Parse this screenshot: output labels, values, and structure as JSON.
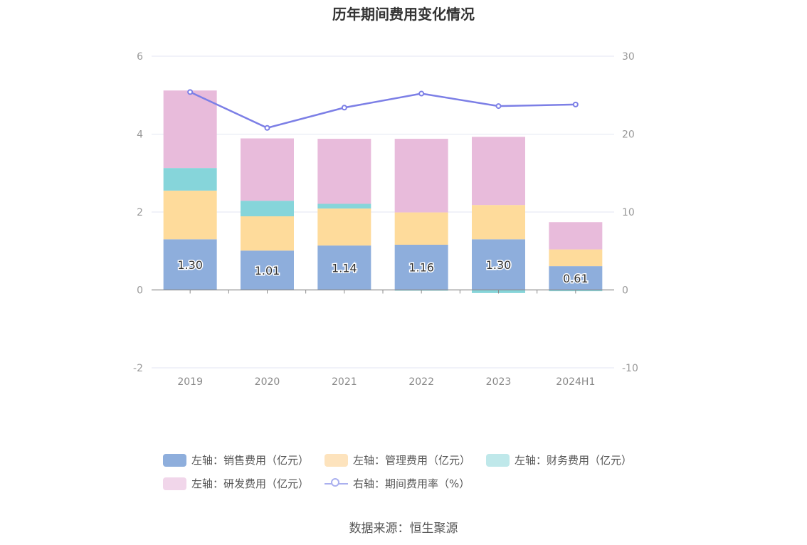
{
  "title": "历年期间费用变化情况",
  "source": "数据来源：恒生聚源",
  "colors": {
    "sales": "#8eaedc",
    "admin": "#fedb9b",
    "finance": "#86d5da",
    "rnd": "#e8bbdb",
    "rate": "#7c7fe6"
  },
  "legend": [
    {
      "label": "左轴：销售费用（亿元）",
      "color": "#8eaedc"
    },
    {
      "label": "左轴：管理费用（亿元）",
      "color": "#fde3bd"
    },
    {
      "label": "左轴：财务费用（亿元）",
      "color": "#bfe8ea"
    },
    {
      "label": "左轴：研发费用（亿元）",
      "color": "#f1d6ea"
    },
    {
      "label": "右轴：期间费用率（%）",
      "color": "#aab0ef"
    }
  ],
  "chart_data": {
    "type": "bar",
    "stacked": true,
    "categories": [
      "2019",
      "2020",
      "2021",
      "2022",
      "2023",
      "2024H1"
    ],
    "left_axis": {
      "ylim": [
        -2,
        6
      ],
      "ticks": [
        "-2",
        "0",
        "2",
        "4",
        "6"
      ]
    },
    "right_axis": {
      "ylim": [
        -10,
        30
      ],
      "ticks": [
        "-10",
        "0",
        "10",
        "20",
        "30"
      ]
    },
    "series": [
      {
        "name": "左轴：销售费用（亿元）",
        "axis": "left",
        "values": [
          1.3,
          1.01,
          1.14,
          1.16,
          1.3,
          0.61
        ],
        "labels": [
          "1.30",
          "1.01",
          "1.14",
          "1.16",
          "1.30",
          "0.61"
        ]
      },
      {
        "name": "左轴：管理费用（亿元）",
        "axis": "left",
        "values": [
          1.25,
          0.88,
          0.95,
          0.83,
          0.88,
          0.43
        ]
      },
      {
        "name": "左轴：财务费用（亿元）",
        "axis": "left",
        "values": [
          0.58,
          0.4,
          0.12,
          -0.02,
          -0.08,
          -0.03
        ]
      },
      {
        "name": "左轴：研发费用（亿元）",
        "axis": "left",
        "values": [
          1.99,
          1.6,
          1.67,
          1.89,
          1.75,
          0.7
        ]
      },
      {
        "name": "右轴：期间费用率（%）",
        "type": "line",
        "axis": "right",
        "values": [
          25.4,
          20.8,
          23.4,
          25.2,
          23.6,
          23.8
        ]
      }
    ],
    "grid": true,
    "legend_position": "bottom"
  }
}
